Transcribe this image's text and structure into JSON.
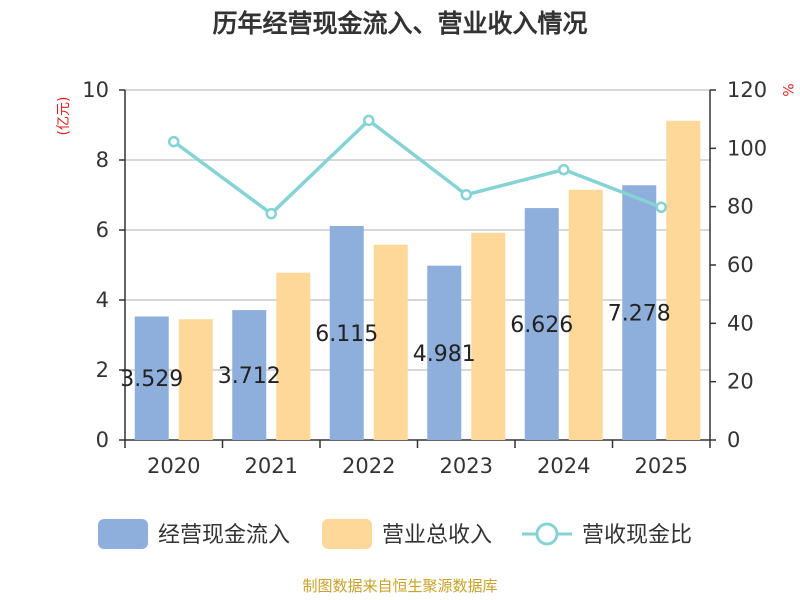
{
  "chart_data": {
    "type": "bar",
    "title": "历年经营现金流入、营业收入情况",
    "categories": [
      "2020",
      "2021",
      "2022",
      "2023",
      "2024",
      "2025"
    ],
    "series": [
      {
        "name": "经营现金流入",
        "kind": "bar",
        "axis": "left",
        "color": "#8eaedc",
        "values": [
          3.529,
          3.712,
          6.115,
          4.981,
          6.626,
          7.278
        ]
      },
      {
        "name": "营业总收入",
        "kind": "bar",
        "axis": "left",
        "color": "#fed898",
        "values": [
          3.45,
          4.78,
          5.58,
          5.92,
          7.15,
          9.12
        ]
      },
      {
        "name": "营收现金比",
        "kind": "line",
        "axis": "right",
        "color": "#85d3d5",
        "values": [
          102.3,
          77.6,
          109.6,
          84.1,
          92.7,
          79.8
        ]
      }
    ],
    "data_labels": [
      "3.529",
      "3.712",
      "6.115",
      "4.981",
      "6.626",
      "7.278"
    ],
    "y_left": {
      "label": "(亿元)",
      "range": [
        0,
        10
      ],
      "ticks": [
        0,
        2,
        4,
        6,
        8,
        10
      ]
    },
    "y_right": {
      "label": "%",
      "range": [
        0,
        120
      ],
      "ticks": [
        0,
        20,
        40,
        60,
        80,
        100,
        120
      ]
    },
    "grid": true,
    "legend_position": "bottom"
  },
  "source": "制图数据来自恒生聚源数据库"
}
